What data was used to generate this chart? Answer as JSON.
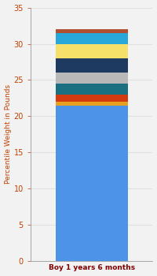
{
  "category": "Boy 1 years 6 months",
  "segments": [
    {
      "value": 21.5,
      "color": "#4D94E8"
    },
    {
      "value": 0.5,
      "color": "#E8A020"
    },
    {
      "value": 1.0,
      "color": "#D43A10"
    },
    {
      "value": 1.5,
      "color": "#1A7080"
    },
    {
      "value": 1.5,
      "color": "#B8B8B8"
    },
    {
      "value": 2.0,
      "color": "#1E3A60"
    },
    {
      "value": 2.0,
      "color": "#F5E06A"
    },
    {
      "value": 1.5,
      "color": "#28A8D8"
    },
    {
      "value": 0.5,
      "color": "#B05030"
    }
  ],
  "ylim": [
    0,
    35
  ],
  "yticks": [
    0,
    5,
    10,
    15,
    20,
    25,
    30,
    35
  ],
  "ylabel": "Percentile Weight in Pounds",
  "background_color": "#F2F2F2",
  "bar_width": 0.65,
  "ylabel_color": "#C04000",
  "xlabel_color": "#800000",
  "tick_color": "#C04000",
  "grid_color": "#E0E0E0",
  "spine_color": "#999999"
}
